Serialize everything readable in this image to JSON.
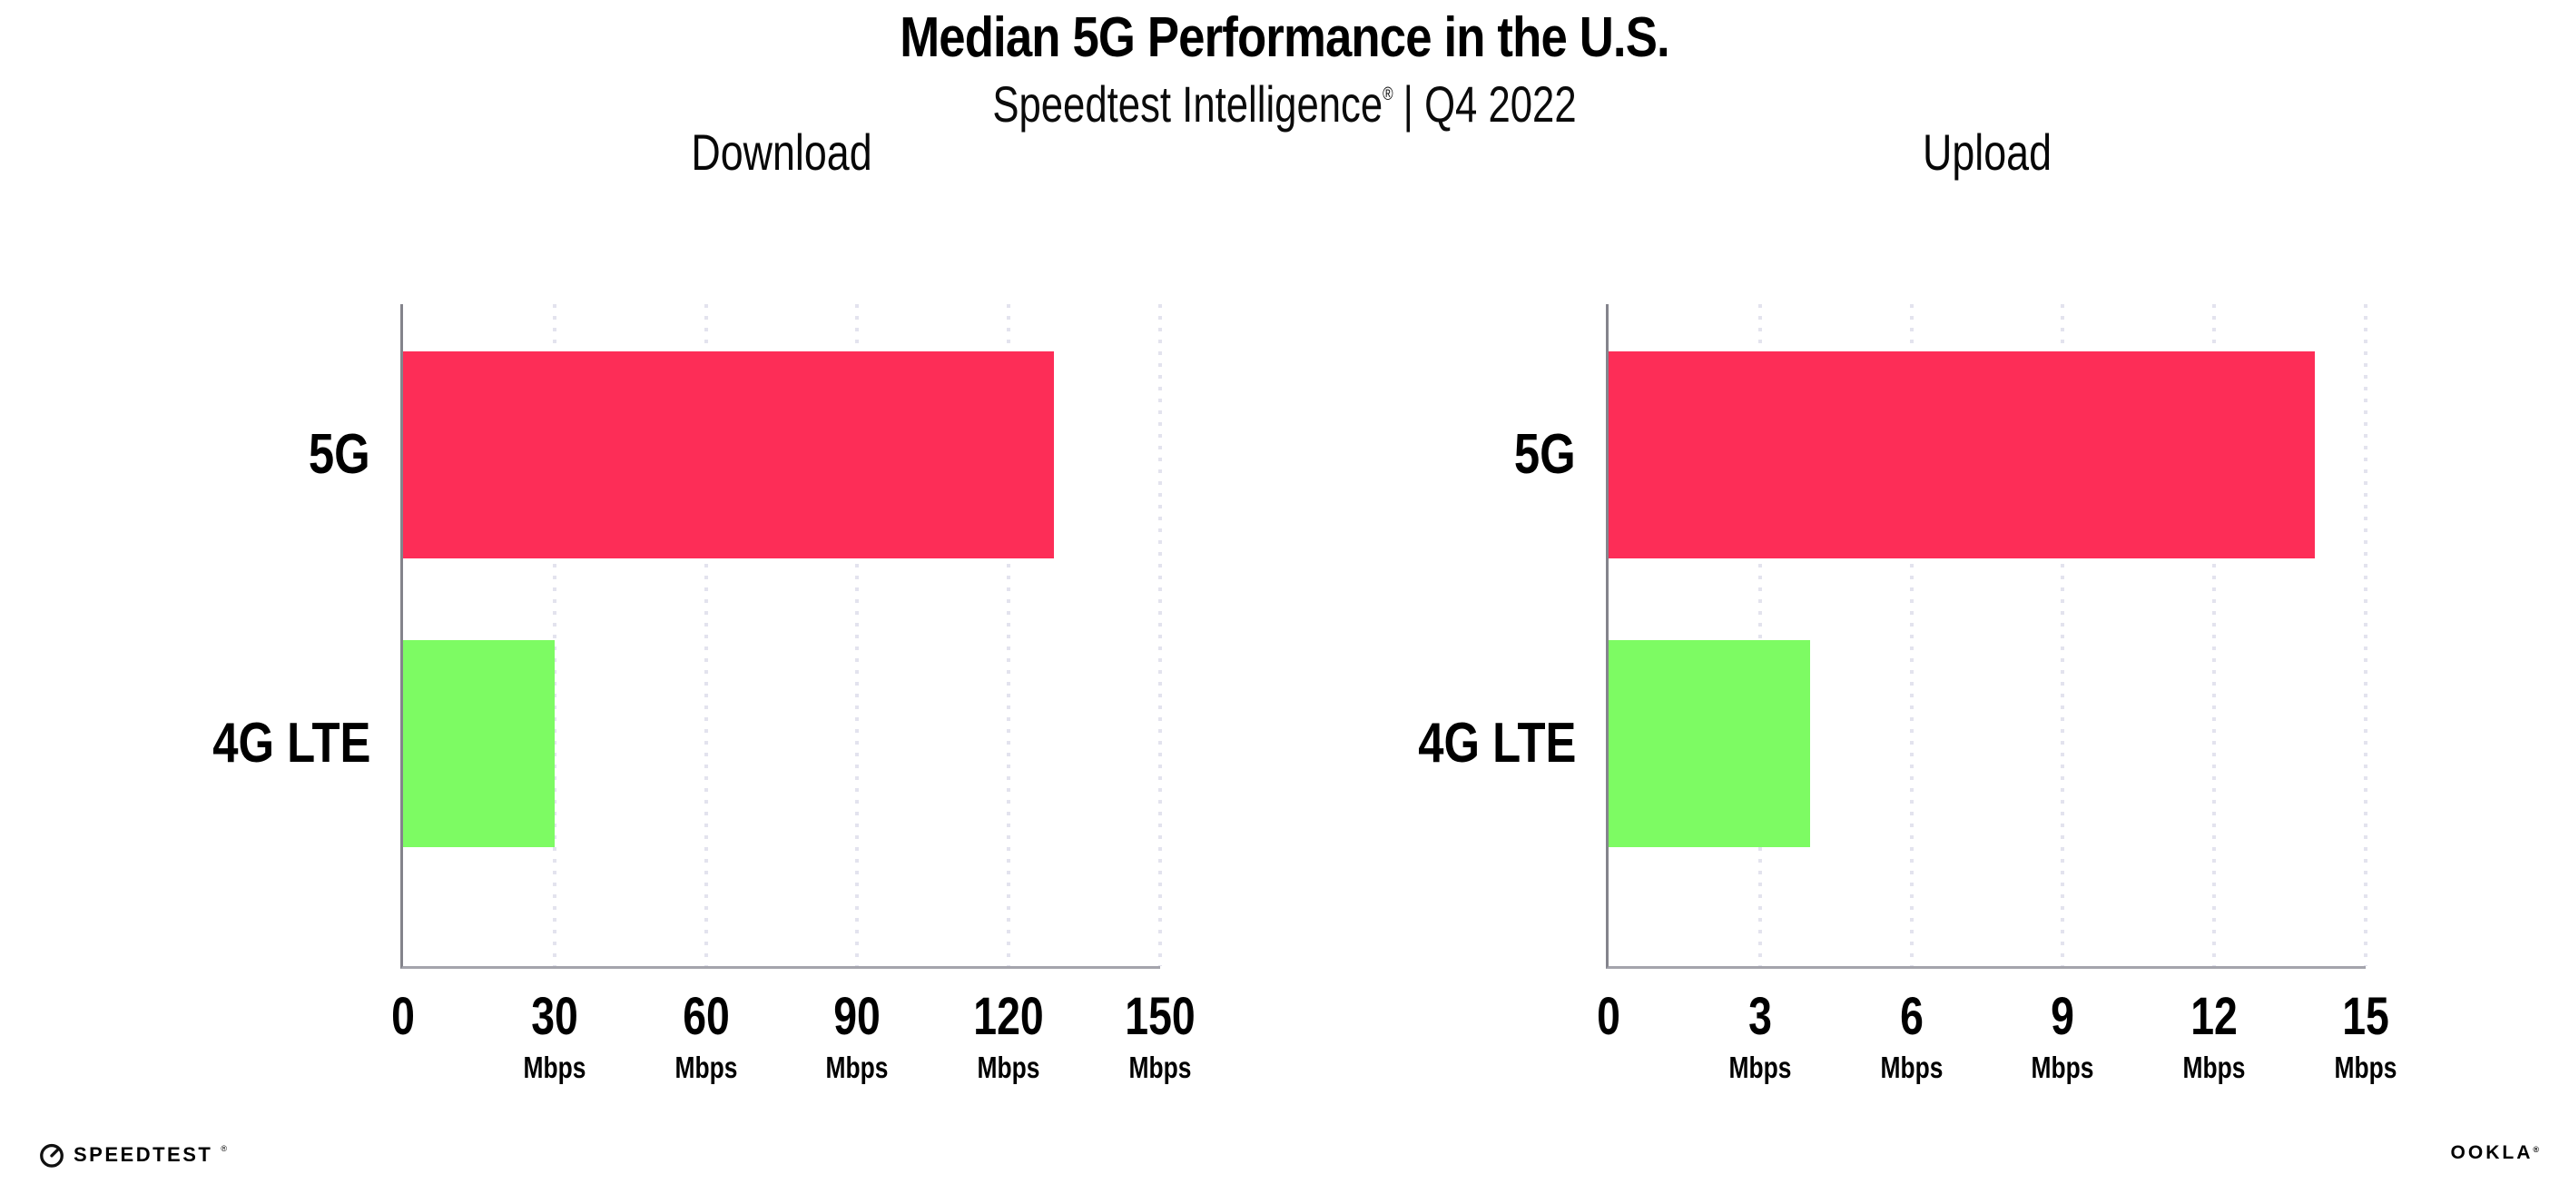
{
  "header": {
    "title": "Median 5G Performance in the U.S.",
    "subtitle_brand": "Speedtest Intelligence",
    "subtitle_reg": "®",
    "subtitle_rest": "| Q4 2022"
  },
  "chart_data": [
    {
      "type": "bar",
      "orientation": "horizontal",
      "title": "Download",
      "categories": [
        "5G",
        "4G LTE"
      ],
      "values": [
        129,
        30
      ],
      "unit": "Mbps",
      "xlabel_ticks": [
        0,
        30,
        60,
        90,
        120,
        150
      ],
      "xlim": [
        0,
        150
      ],
      "grid": "vertical-dotted",
      "legend": "none"
    },
    {
      "type": "bar",
      "orientation": "horizontal",
      "title": "Upload",
      "categories": [
        "5G",
        "4G LTE"
      ],
      "values": [
        14,
        4
      ],
      "unit": "Mbps",
      "xlabel_ticks": [
        0,
        3,
        6,
        9,
        12,
        15
      ],
      "xlim": [
        0,
        15
      ],
      "grid": "vertical-dotted",
      "legend": "none"
    }
  ],
  "colors": {
    "bar_5g": "#fd2d57",
    "bar_4g_lte": "#7dfb63",
    "gridline": "#e3e3ee",
    "axis_y": "#84848c",
    "axis_x": "#a4a4ac",
    "text": "#000000"
  },
  "footer": {
    "speedtest_label": "SPEEDTEST",
    "speedtest_reg": "®",
    "ookla_label": "OOKLA",
    "ookla_reg": "®"
  }
}
